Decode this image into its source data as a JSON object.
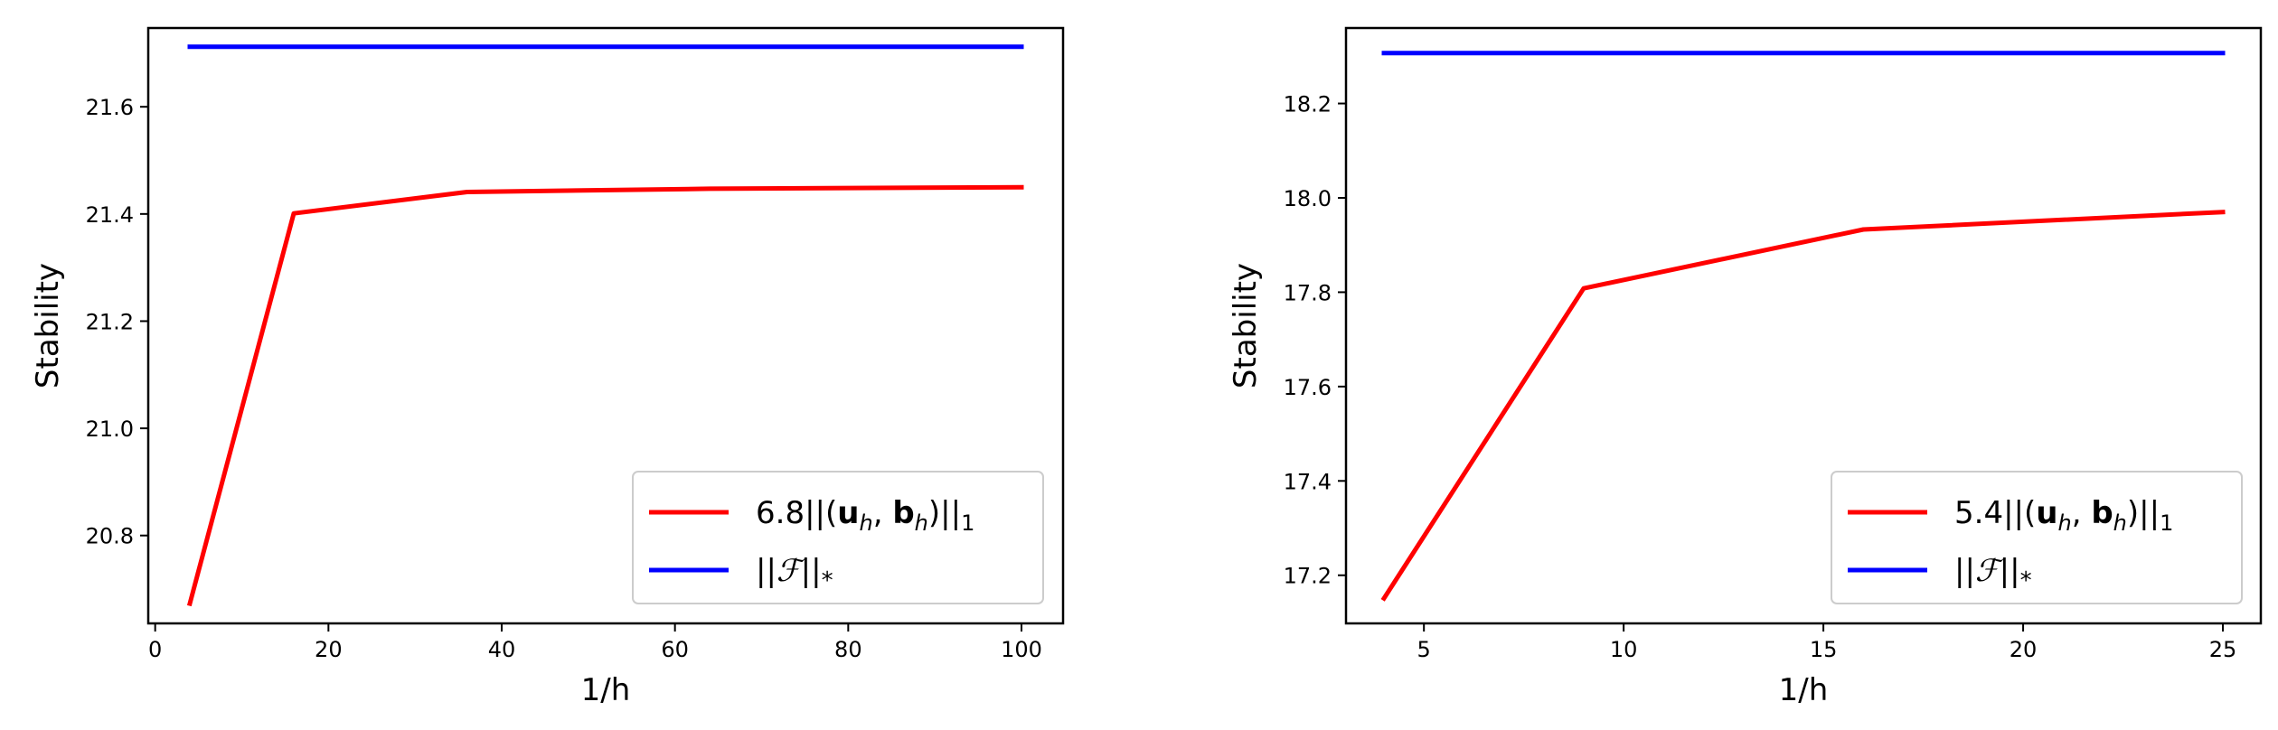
{
  "chart_data": [
    {
      "type": "line",
      "title": "",
      "xlabel": "1/h",
      "ylabel": "Stability",
      "xlim": [
        -0.8,
        104.8
      ],
      "ylim": [
        20.636,
        21.747
      ],
      "xticks": [
        0,
        20,
        40,
        60,
        80,
        100
      ],
      "yticks": [
        20.8,
        21.0,
        21.2,
        21.4,
        21.6
      ],
      "xtick_labels": [
        "0",
        "20",
        "40",
        "60",
        "80",
        "100"
      ],
      "ytick_labels": [
        "20.8",
        "21.0",
        "21.2",
        "21.4",
        "21.6"
      ],
      "grid": false,
      "legend_position": "lower-right",
      "series": [
        {
          "name": "6.8||(u_h, b_h)||_1",
          "legend_parts": [
            "6.8||(",
            "u",
            "h",
            ", ",
            "b",
            "h",
            ")||",
            "1"
          ],
          "color": "#ff0000",
          "x": [
            4,
            16,
            36,
            64,
            100
          ],
          "y": [
            20.673,
            21.401,
            21.441,
            21.447,
            21.45
          ]
        },
        {
          "name": "||F||_*",
          "legend_parts": [
            "||",
            "ℱ",
            "||",
            "*"
          ],
          "color": "#0000ff",
          "x": [
            4,
            16,
            36,
            64,
            100
          ],
          "y": [
            21.712,
            21.712,
            21.712,
            21.712,
            21.712
          ]
        }
      ]
    },
    {
      "type": "line",
      "title": "",
      "xlabel": "1/h",
      "ylabel": "Stability",
      "xlim": [
        3.05,
        25.95
      ],
      "ylim": [
        17.098,
        18.36
      ],
      "xticks": [
        5,
        10,
        15,
        20,
        25
      ],
      "yticks": [
        17.2,
        17.4,
        17.6,
        17.8,
        18.0,
        18.2
      ],
      "xtick_labels": [
        "5",
        "10",
        "15",
        "20",
        "25"
      ],
      "ytick_labels": [
        "17.2",
        "17.4",
        "17.6",
        "17.8",
        "18.0",
        "18.2"
      ],
      "grid": false,
      "legend_position": "lower-right",
      "series": [
        {
          "name": "5.4||(u_h, b_h)||_1",
          "legend_parts": [
            "5.4||(",
            "u",
            "h",
            ", ",
            "b",
            "h",
            ")||",
            "1"
          ],
          "color": "#ff0000",
          "x": [
            4,
            9,
            16,
            25
          ],
          "y": [
            17.151,
            17.808,
            17.933,
            17.97
          ]
        },
        {
          "name": "||F||_*",
          "legend_parts": [
            "||",
            "ℱ",
            "||",
            "*"
          ],
          "color": "#0000ff",
          "x": [
            4,
            9,
            16,
            25
          ],
          "y": [
            18.307,
            18.307,
            18.307,
            18.307
          ]
        }
      ]
    }
  ]
}
